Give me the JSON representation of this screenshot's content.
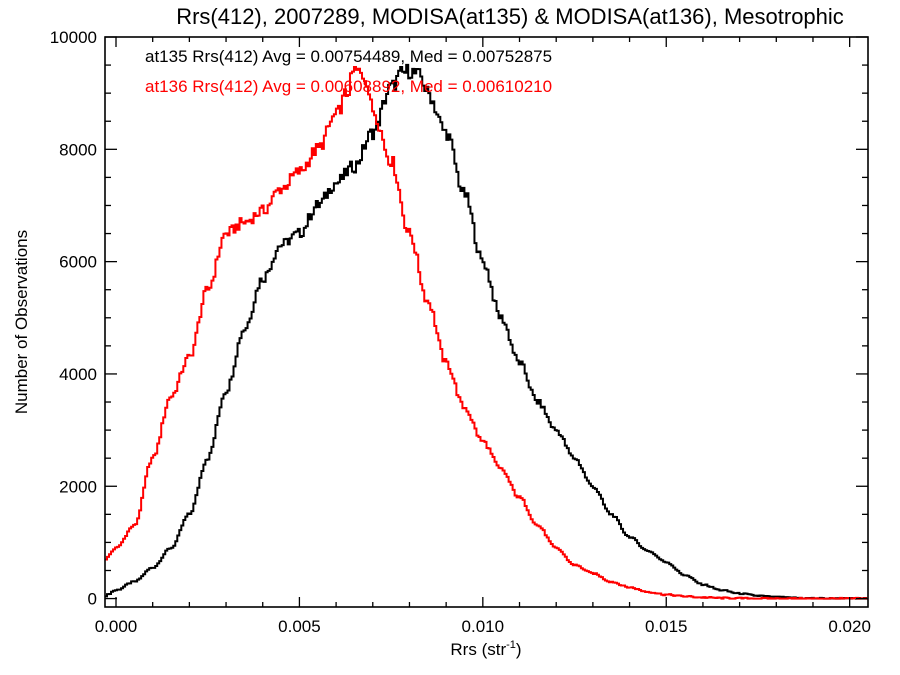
{
  "chart_data": {
    "type": "line",
    "title": "Rrs(412), 2007289, MODISA(at135) & MODISA(at136), Mesotrophic",
    "xlabel": "Rrs (str",
    "xlabel_sup": "-1",
    "xlabel_close": ")",
    "ylabel": "Number of Observations",
    "xlim": [
      -0.0003,
      0.0205
    ],
    "ylim": [
      -150,
      10000
    ],
    "xticks": [
      0.0,
      0.005,
      0.01,
      0.015,
      0.02
    ],
    "xtick_labels": [
      "0.000",
      "0.005",
      "0.010",
      "0.015",
      "0.020"
    ],
    "yticks": [
      0,
      2000,
      4000,
      6000,
      8000,
      10000
    ],
    "ytick_labels": [
      "0",
      "2000",
      "4000",
      "6000",
      "8000",
      "10000"
    ],
    "grid": false,
    "legend": "none",
    "step": true,
    "annotations": [
      {
        "text": "at135 Rrs(412) Avg = 0.00754489, Med = 0.00752875",
        "color": "#000000"
      },
      {
        "text": "at136 Rrs(412) Avg = 0.00608892, Med = 0.00610210",
        "color": "#ff0000"
      }
    ],
    "series": [
      {
        "color": "#000000",
        "x": [
          -0.0003,
          0.0,
          0.0005,
          0.001,
          0.0015,
          0.002,
          0.0025,
          0.003,
          0.0035,
          0.004,
          0.0045,
          0.005,
          0.0055,
          0.006,
          0.0065,
          0.007,
          0.0075,
          0.0078,
          0.008,
          0.0083,
          0.0085,
          0.009,
          0.0095,
          0.01,
          0.0105,
          0.011,
          0.0115,
          0.012,
          0.0125,
          0.013,
          0.0135,
          0.014,
          0.0145,
          0.015,
          0.0155,
          0.016,
          0.0165,
          0.017,
          0.0175,
          0.018,
          0.0185,
          0.019,
          0.0195,
          0.02,
          0.0205
        ],
        "values": [
          50,
          150,
          300,
          550,
          900,
          1500,
          2500,
          3700,
          4800,
          5700,
          6300,
          6500,
          7000,
          7400,
          7700,
          8300,
          9100,
          9350,
          9400,
          9300,
          9000,
          8300,
          7200,
          6000,
          5000,
          4200,
          3500,
          3000,
          2500,
          2000,
          1500,
          1100,
          850,
          650,
          420,
          250,
          150,
          90,
          50,
          25,
          12,
          5,
          2,
          0,
          0
        ]
      },
      {
        "color": "#ff0000",
        "x": [
          -0.0003,
          0.0,
          0.0005,
          0.001,
          0.0015,
          0.002,
          0.0025,
          0.003,
          0.0035,
          0.004,
          0.0045,
          0.005,
          0.0055,
          0.006,
          0.0063,
          0.0065,
          0.0068,
          0.007,
          0.0075,
          0.008,
          0.0085,
          0.009,
          0.0095,
          0.01,
          0.0105,
          0.011,
          0.0115,
          0.012,
          0.0125,
          0.013,
          0.0135,
          0.014,
          0.0145,
          0.015,
          0.0155,
          0.016,
          0.0165,
          0.017,
          0.0175,
          0.018,
          0.0185,
          0.019,
          0.0195,
          0.02,
          0.0205
        ],
        "values": [
          700,
          900,
          1300,
          2500,
          3600,
          4300,
          5500,
          6500,
          6700,
          6900,
          7300,
          7600,
          8000,
          8600,
          9000,
          9400,
          9300,
          8700,
          7800,
          6500,
          5300,
          4200,
          3400,
          2800,
          2300,
          1800,
          1300,
          900,
          600,
          450,
          300,
          200,
          120,
          70,
          40,
          20,
          10,
          5,
          2,
          0,
          0,
          0,
          0,
          0,
          0
        ]
      }
    ]
  }
}
